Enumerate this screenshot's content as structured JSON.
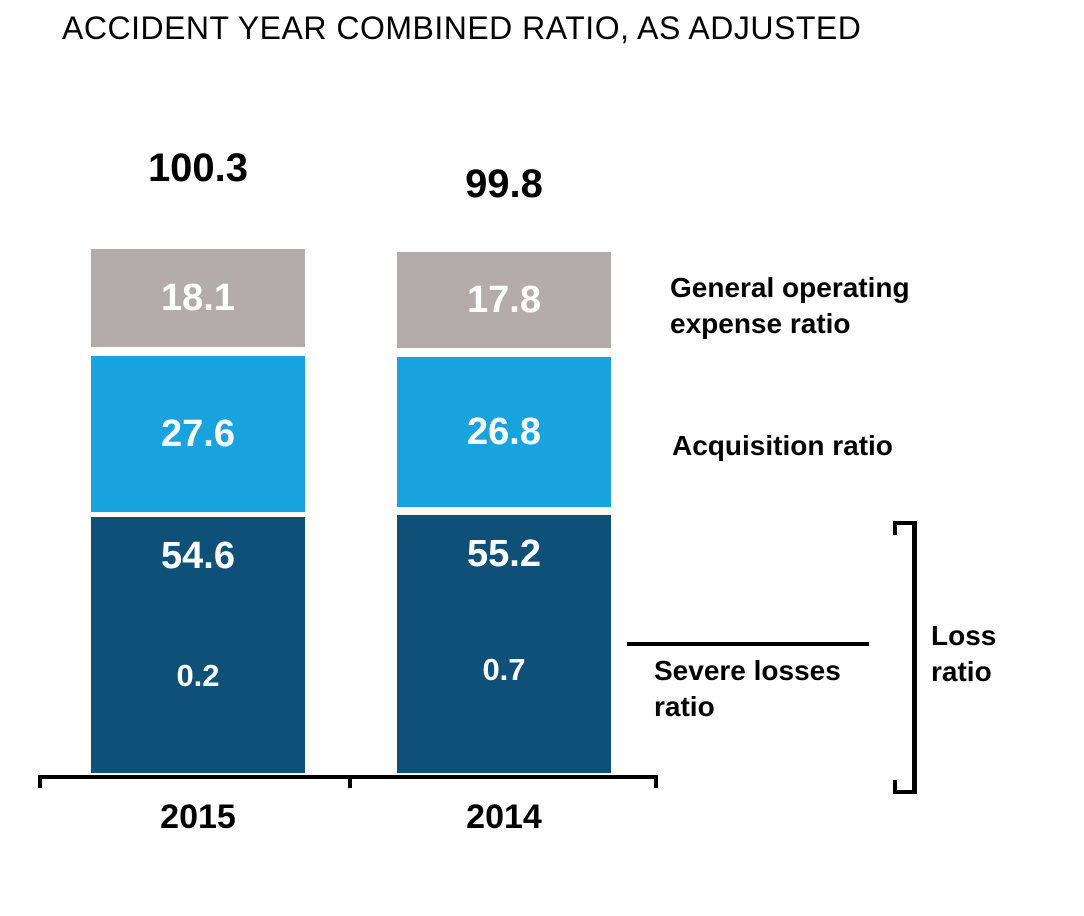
{
  "chart_data": {
    "type": "bar",
    "subtype": "stacked-vertical",
    "title": "ACCIDENT YEAR COMBINED RATIO, AS ADJUSTED",
    "categories": [
      "2015",
      "2014"
    ],
    "totals": [
      "100.3",
      "99.8"
    ],
    "series": [
      {
        "name": "General operating expense ratio",
        "color": "#b3acab",
        "values": [
          "18.1",
          "17.8"
        ]
      },
      {
        "name": "Acquisition ratio",
        "color": "#18a3df",
        "values": [
          "27.6",
          "26.8"
        ]
      },
      {
        "name": "Loss ratio",
        "color": "#0e5078",
        "values": [
          "54.6",
          "55.2"
        ]
      },
      {
        "name": "Severe losses ratio",
        "color": "#0e5078",
        "note": "component shown inside Loss ratio segment",
        "values": [
          "0.2",
          "0.7"
        ]
      }
    ],
    "annotations": {
      "goe_label": "General operating\nexpense ratio",
      "acq_label": "Acquisition ratio",
      "severe_label": "Severe losses\nratio",
      "loss_label": "Loss\nratio"
    },
    "layout_hints": {
      "legend_position": "right-of-bars",
      "grid": false,
      "value_labels": "inside-white",
      "total_labels": "above-bars-black",
      "x_axis": "black-line-with-end-and-mid-ticks"
    },
    "colors": {
      "background": "#ffffff",
      "text": "#000000",
      "bar_value_text": "#ffffff"
    }
  }
}
